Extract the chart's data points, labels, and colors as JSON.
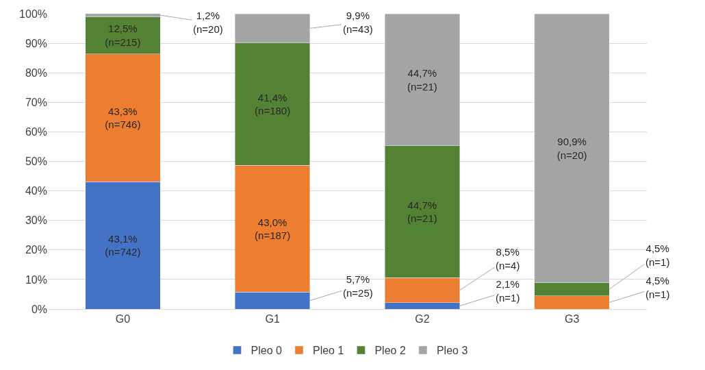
{
  "chart_data": {
    "type": "bar",
    "stacked": true,
    "categories": [
      "G0",
      "G1",
      "G2",
      "G3"
    ],
    "series": [
      {
        "name": "Pleo 0",
        "color": "#4472c4",
        "values": [
          43.1,
          5.7,
          2.1,
          null
        ],
        "value_labels": [
          "43,1%\n(n=742)",
          "5,7%\n(n=25)",
          "2,1%\n(n=1)",
          null
        ]
      },
      {
        "name": "Pleo 1",
        "color": "#ed7d31",
        "values": [
          43.3,
          43.0,
          8.5,
          4.5
        ],
        "value_labels": [
          "43,3%\n(n=746)",
          "43,0%\n(n=187)",
          "8,5%\n(n=4)",
          "4,5%\n(n=1)"
        ]
      },
      {
        "name": "Pleo 2",
        "color": "#548235",
        "values": [
          12.5,
          41.4,
          44.7,
          4.5
        ],
        "value_labels": [
          "12,5%\n(n=215)",
          "41,4%\n(n=180)",
          "44,7%\n(n=21)",
          "4,5%\n(n=1)"
        ]
      },
      {
        "name": "Pleo 3",
        "color": "#a5a5a5",
        "values": [
          1.2,
          9.9,
          44.7,
          90.9
        ],
        "value_labels": [
          "1,2%\n(n=20)",
          "9,9%\n(n=43)",
          "44,7%\n(n=21)",
          "90,9%\n(n=20)"
        ]
      }
    ],
    "ylim": [
      0,
      100
    ],
    "yticks": [
      {
        "value": 0,
        "label": "0%"
      },
      {
        "value": 10,
        "label": "10%"
      },
      {
        "value": 20,
        "label": "20%"
      },
      {
        "value": 30,
        "label": "30%"
      },
      {
        "value": 40,
        "label": "40%"
      },
      {
        "value": 50,
        "label": "50%"
      },
      {
        "value": 60,
        "label": "60%"
      },
      {
        "value": 70,
        "label": "70%"
      },
      {
        "value": 80,
        "label": "80%"
      },
      {
        "value": 90,
        "label": "90%"
      },
      {
        "value": 100,
        "label": "100%"
      }
    ],
    "grid": "y",
    "legend": "bottom"
  }
}
